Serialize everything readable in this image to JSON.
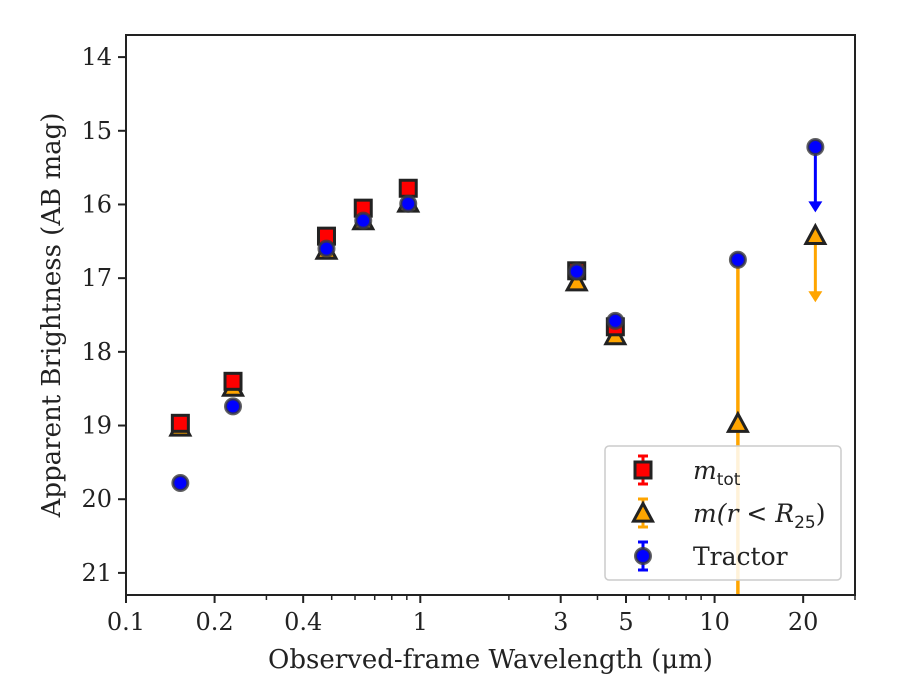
{
  "chart_data": {
    "type": "scatter",
    "title": "",
    "xlabel": "Observed-frame Wavelength (μm)",
    "ylabel": "Apparent Brightness (AB mag)",
    "x_scale": "log",
    "xlim": [
      0.1,
      30
    ],
    "ylim": [
      21.3,
      13.7
    ],
    "y_inverted": true,
    "x_ticks": [
      {
        "value": 0.1,
        "label": "0.1"
      },
      {
        "value": 0.2,
        "label": "0.2"
      },
      {
        "value": 0.4,
        "label": "0.4"
      },
      {
        "value": 1,
        "label": "1"
      },
      {
        "value": 3,
        "label": "3"
      },
      {
        "value": 5,
        "label": "5"
      },
      {
        "value": 10,
        "label": "10"
      },
      {
        "value": 20,
        "label": "20"
      }
    ],
    "y_ticks": [
      {
        "value": 14,
        "label": "14"
      },
      {
        "value": 15,
        "label": "15"
      },
      {
        "value": 16,
        "label": "16"
      },
      {
        "value": 17,
        "label": "17"
      },
      {
        "value": 18,
        "label": "18"
      },
      {
        "value": 19,
        "label": "19"
      },
      {
        "value": 20,
        "label": "20"
      },
      {
        "value": 21,
        "label": "21"
      }
    ],
    "grid": false,
    "legend_position": "bottom-right",
    "series": [
      {
        "name": "m_tot",
        "marker": "square",
        "color": "#ff0000",
        "points": [
          {
            "x": 0.153,
            "y": 18.97
          },
          {
            "x": 0.231,
            "y": 18.4
          },
          {
            "x": 0.48,
            "y": 16.43
          },
          {
            "x": 0.64,
            "y": 16.05
          },
          {
            "x": 0.91,
            "y": 15.78
          },
          {
            "x": 3.4,
            "y": 16.9
          },
          {
            "x": 4.6,
            "y": 17.66
          }
        ]
      },
      {
        "name": "m(r < R25)",
        "marker": "triangle",
        "color": "#ffa500",
        "points": [
          {
            "x": 0.153,
            "y": 19.02
          },
          {
            "x": 0.231,
            "y": 18.48
          },
          {
            "x": 0.48,
            "y": 16.62
          },
          {
            "x": 0.64,
            "y": 16.22
          },
          {
            "x": 0.91,
            "y": 15.98
          },
          {
            "x": 3.4,
            "y": 17.05
          },
          {
            "x": 4.6,
            "y": 17.78
          },
          {
            "x": 12,
            "y": 18.97
          }
        ],
        "upper_limits": [
          {
            "x": 22,
            "y": 16.42,
            "to": 17.3
          }
        ],
        "error_bars": [
          {
            "x": 12,
            "low": 16.75,
            "high": 21.3
          }
        ]
      },
      {
        "name": "Tractor",
        "marker": "circle",
        "color": "#0000ff",
        "points": [
          {
            "x": 0.153,
            "y": 19.78
          },
          {
            "x": 0.231,
            "y": 18.74
          },
          {
            "x": 0.48,
            "y": 16.6
          },
          {
            "x": 0.64,
            "y": 16.22
          },
          {
            "x": 0.91,
            "y": 15.99
          },
          {
            "x": 3.4,
            "y": 16.91
          },
          {
            "x": 4.6,
            "y": 17.58
          },
          {
            "x": 12,
            "y": 16.75
          }
        ],
        "upper_limits": [
          {
            "x": 22,
            "y": 15.22,
            "to": 16.08
          }
        ]
      }
    ],
    "legend": [
      {
        "series": "m_tot",
        "main": "m",
        "sub": "tot",
        "tail": ""
      },
      {
        "series": "m(r < R25)",
        "main": "m(r < R",
        "sub": "25",
        "tail": ")"
      },
      {
        "series": "Tractor",
        "main": "Tractor",
        "sub": "",
        "tail": ""
      }
    ]
  }
}
